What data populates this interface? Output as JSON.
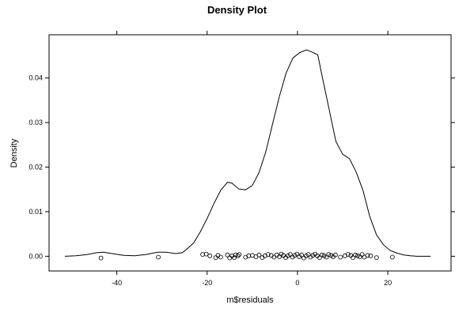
{
  "chart_data": {
    "type": "line",
    "title": "Density Plot",
    "xlabel": "m$residuals",
    "ylabel": "Density",
    "xlim": [
      -55,
      34
    ],
    "ylim": [
      -0.0033,
      0.0497
    ],
    "x_ticks": [
      -40,
      -20,
      0,
      20
    ],
    "x_tick_labels": [
      "-40",
      "-20",
      "0",
      "20"
    ],
    "y_ticks": [
      0.0,
      0.01,
      0.02,
      0.03,
      0.04
    ],
    "y_tick_labels": [
      "0.00",
      "0.01",
      "0.02",
      "0.03",
      "0.04"
    ],
    "grid": false,
    "series": [
      {
        "kind": "density-line",
        "x": [
          -51.5,
          -49,
          -46.5,
          -44.5,
          -43,
          -41,
          -38.5,
          -36,
          -33.5,
          -31,
          -29,
          -27,
          -25.5,
          -24.5,
          -23,
          -21.5,
          -20,
          -18.5,
          -17,
          -15.5,
          -14.5,
          -13,
          -11.5,
          -10,
          -8.5,
          -7,
          -5.5,
          -4,
          -2.5,
          -1,
          0.5,
          2,
          3,
          4.5,
          5.5,
          7,
          8.5,
          10,
          11.5,
          13,
          14.5,
          16,
          17.5,
          19,
          20.5,
          22,
          23.5,
          25,
          26.5,
          28,
          29.5
        ],
        "y": [
          0,
          0.0001,
          0.0004,
          0.0008,
          0.0009,
          0.0006,
          0.0002,
          0.0001,
          0.0004,
          0.0009,
          0.0009,
          0.0006,
          0.0008,
          0.0016,
          0.003,
          0.0055,
          0.0085,
          0.0118,
          0.0148,
          0.0166,
          0.0164,
          0.0151,
          0.0149,
          0.0159,
          0.0188,
          0.0235,
          0.0297,
          0.0359,
          0.0412,
          0.0445,
          0.0457,
          0.0463,
          0.0459,
          0.0452,
          0.0402,
          0.033,
          0.0258,
          0.0229,
          0.0219,
          0.0189,
          0.0148,
          0.0089,
          0.0048,
          0.0026,
          0.0013,
          0.0007,
          0.0003,
          0.0001,
          0,
          0,
          0
        ]
      },
      {
        "kind": "rug-points",
        "x": [
          -43.5,
          -30.8,
          -21,
          -20.2,
          -19.4,
          -18.1,
          -17.6,
          -17,
          -15.5,
          -15,
          -14.5,
          -14,
          -13.7,
          -13.2,
          -12.9,
          -11.5,
          -10.8,
          -10,
          -9.2,
          -8.5,
          -7.8,
          -7.2,
          -6.5,
          -5.8,
          -5.2,
          -4.6,
          -4,
          -3.6,
          -3.1,
          -2.6,
          -2.1,
          -1.6,
          -1.1,
          -0.6,
          -0.1,
          0.4,
          0.9,
          1.4,
          1.9,
          2.4,
          2.9,
          3.4,
          3.9,
          4.4,
          4.9,
          5.4,
          5.9,
          6.4,
          6.9,
          7.4,
          7.9,
          8.4,
          9.5,
          10.5,
          11.2,
          11.8,
          12.3,
          12.8,
          13.3,
          13.8,
          14.3,
          14.8,
          15.5,
          16.2,
          17.5,
          21
        ],
        "y": [
          -0.0004,
          -0.0002,
          0.0004,
          0.0005,
          0.0001,
          -0.0003,
          0.0002,
          -0.0002,
          0.0003,
          -0.0004,
          0.0001,
          -0.0003,
          0.0003,
          0.0001,
          0.0004,
          -0.0002,
          0.0001,
          0.0002,
          -0.0001,
          0.0003,
          -0.0003,
          0.0001,
          0.0004,
          0.0002,
          -0.0002,
          0.0003,
          -0.0001,
          0.0005,
          0.0002,
          -0.0003,
          0.0001,
          0.0004,
          -0.0002,
          0.0002,
          0.0005,
          -0.0001,
          0.0003,
          -0.0004,
          0.0001,
          0.0004,
          -0.0002,
          0.0002,
          0.0005,
          0.0001,
          -0.0003,
          0.0003,
          0.0001,
          -0.0002,
          0.0004,
          0.0002,
          -0.0001,
          0.0003,
          -0.0002,
          0.0001,
          0.0004,
          0.0002,
          -0.0003,
          0.0003,
          0.0001,
          -0.0001,
          0.0004,
          -0.0002,
          0.0002,
          0.0001,
          -0.0003,
          -0.0002
        ]
      }
    ]
  }
}
